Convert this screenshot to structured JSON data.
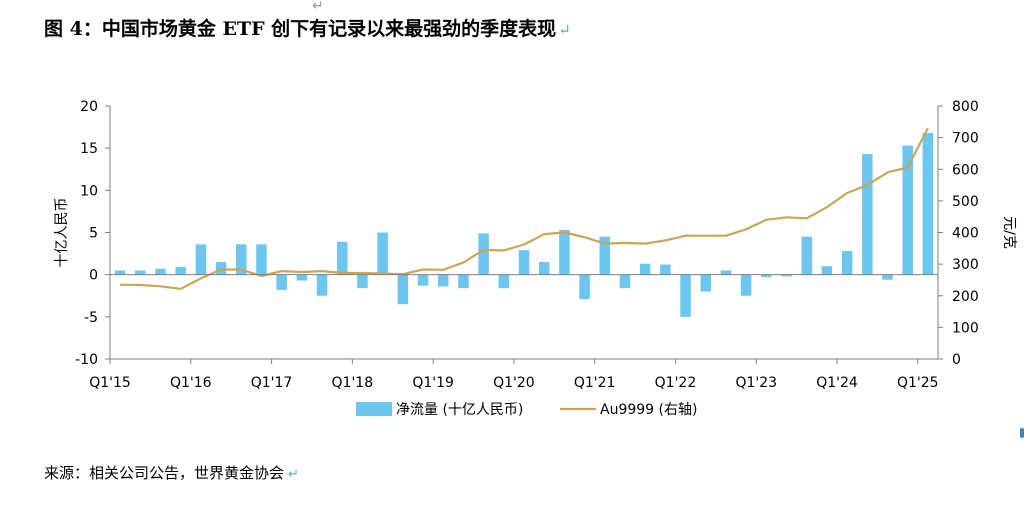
{
  "title": "图 4：中国市场黄金 ETF 创下有记录以来最强劲的季度表现",
  "source": "来源：相关公司公告，世界黄金协会",
  "colors": {
    "bar": "#6cc6f0",
    "line": "#c9a55a",
    "axis": "#7f7f7f"
  },
  "chart_data": {
    "type": "bar+line",
    "y_left": {
      "label": "十亿人民币",
      "range": [
        -10,
        20
      ],
      "ticks": [
        -10,
        -5,
        0,
        5,
        10,
        15,
        20
      ]
    },
    "y_right": {
      "label": "元/克",
      "range": [
        0,
        800
      ],
      "ticks": [
        0,
        100,
        200,
        300,
        400,
        500,
        600,
        700,
        800
      ]
    },
    "x_tick_labels": [
      "Q1'15",
      "Q1'16",
      "Q1'17",
      "Q1'18",
      "Q1'19",
      "Q1'20",
      "Q1'21",
      "Q1'22",
      "Q1'23",
      "Q1'24",
      "Q1'25"
    ],
    "categories": [
      "Q1'15",
      "Q2'15",
      "Q3'15",
      "Q4'15",
      "Q1'16",
      "Q2'16",
      "Q3'16",
      "Q4'16",
      "Q1'17",
      "Q2'17",
      "Q3'17",
      "Q4'17",
      "Q1'18",
      "Q2'18",
      "Q3'18",
      "Q4'18",
      "Q1'19",
      "Q2'19",
      "Q3'19",
      "Q4'19",
      "Q1'20",
      "Q2'20",
      "Q3'20",
      "Q4'20",
      "Q1'21",
      "Q2'21",
      "Q3'21",
      "Q4'21",
      "Q1'22",
      "Q2'22",
      "Q3'22",
      "Q4'22",
      "Q1'23",
      "Q2'23",
      "Q3'23",
      "Q4'23",
      "Q1'24",
      "Q2'24",
      "Q3'24",
      "Q4'24",
      "Q1'25"
    ],
    "series": [
      {
        "name": "净流量 (十亿人民币)",
        "type": "bar",
        "axis": "left",
        "values": [
          0.5,
          0.5,
          0.7,
          0.9,
          3.6,
          1.5,
          3.6,
          3.6,
          -1.8,
          -0.7,
          -2.5,
          3.9,
          -1.6,
          5.0,
          -3.5,
          -1.3,
          -1.4,
          -1.6,
          4.9,
          -1.6,
          2.9,
          1.5,
          5.3,
          -2.9,
          4.5,
          -1.6,
          1.3,
          1.2,
          -5.0,
          -2.0,
          0.5,
          -2.5,
          -0.3,
          -0.2,
          4.5,
          1.0,
          2.8,
          14.3,
          -0.6,
          15.3,
          16.8
        ]
      },
      {
        "name": "Au9999 (右轴)",
        "type": "line",
        "axis": "right",
        "values": [
          235,
          234,
          230,
          222,
          255,
          283,
          283,
          262,
          278,
          275,
          278,
          272,
          272,
          270,
          268,
          283,
          282,
          305,
          345,
          343,
          362,
          395,
          400,
          385,
          365,
          367,
          365,
          375,
          390,
          390,
          390,
          410,
          440,
          448,
          445,
          480,
          525,
          550,
          590,
          606,
          730
        ]
      }
    ],
    "legend_position": "bottom"
  }
}
